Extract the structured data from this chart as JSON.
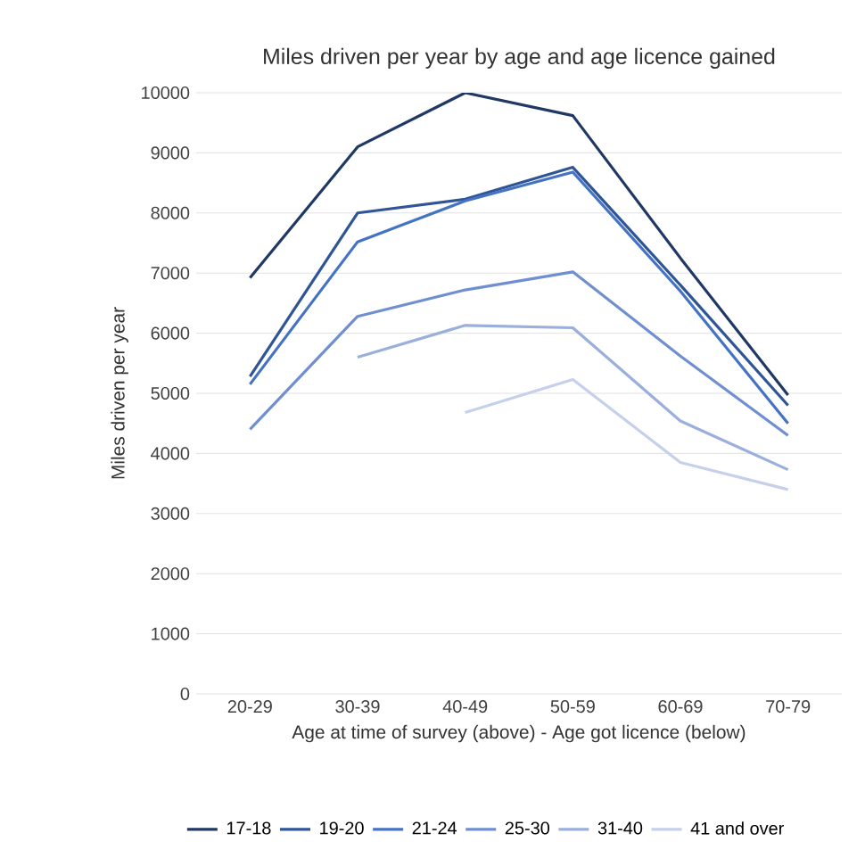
{
  "chart_data": {
    "type": "line",
    "title": "Miles driven per year by age and age licence gained",
    "xlabel": "Age at time of survey (above) - Age got licence (below)",
    "ylabel": "Miles driven per year",
    "categories": [
      "20-29",
      "30-39",
      "40-49",
      "50-59",
      "60-69",
      "70-79"
    ],
    "ylim": [
      0,
      10000
    ],
    "yticks": [
      0,
      1000,
      2000,
      3000,
      4000,
      5000,
      6000,
      7000,
      8000,
      9000,
      10000
    ],
    "grid": "y",
    "legend": "bottom",
    "series": [
      {
        "name": "17-18",
        "color": "#203864",
        "values": [
          6920,
          9100,
          10000,
          9620,
          7250,
          4970
        ]
      },
      {
        "name": "19-20",
        "color": "#2f5597",
        "values": [
          5280,
          8000,
          8230,
          8760,
          6800,
          4800
        ]
      },
      {
        "name": "21-24",
        "color": "#4472c4",
        "values": [
          5150,
          7520,
          8200,
          8680,
          6700,
          4500
        ]
      },
      {
        "name": "25-30",
        "color": "#6f8fd0",
        "values": [
          4400,
          6280,
          6720,
          7020,
          5620,
          4300
        ]
      },
      {
        "name": "31-40",
        "color": "#9aafdc",
        "values": [
          null,
          5600,
          6130,
          6090,
          4540,
          3730
        ]
      },
      {
        "name": "41 and over",
        "color": "#c5d0ea",
        "values": [
          null,
          null,
          4680,
          5230,
          3850,
          3400
        ]
      }
    ]
  }
}
